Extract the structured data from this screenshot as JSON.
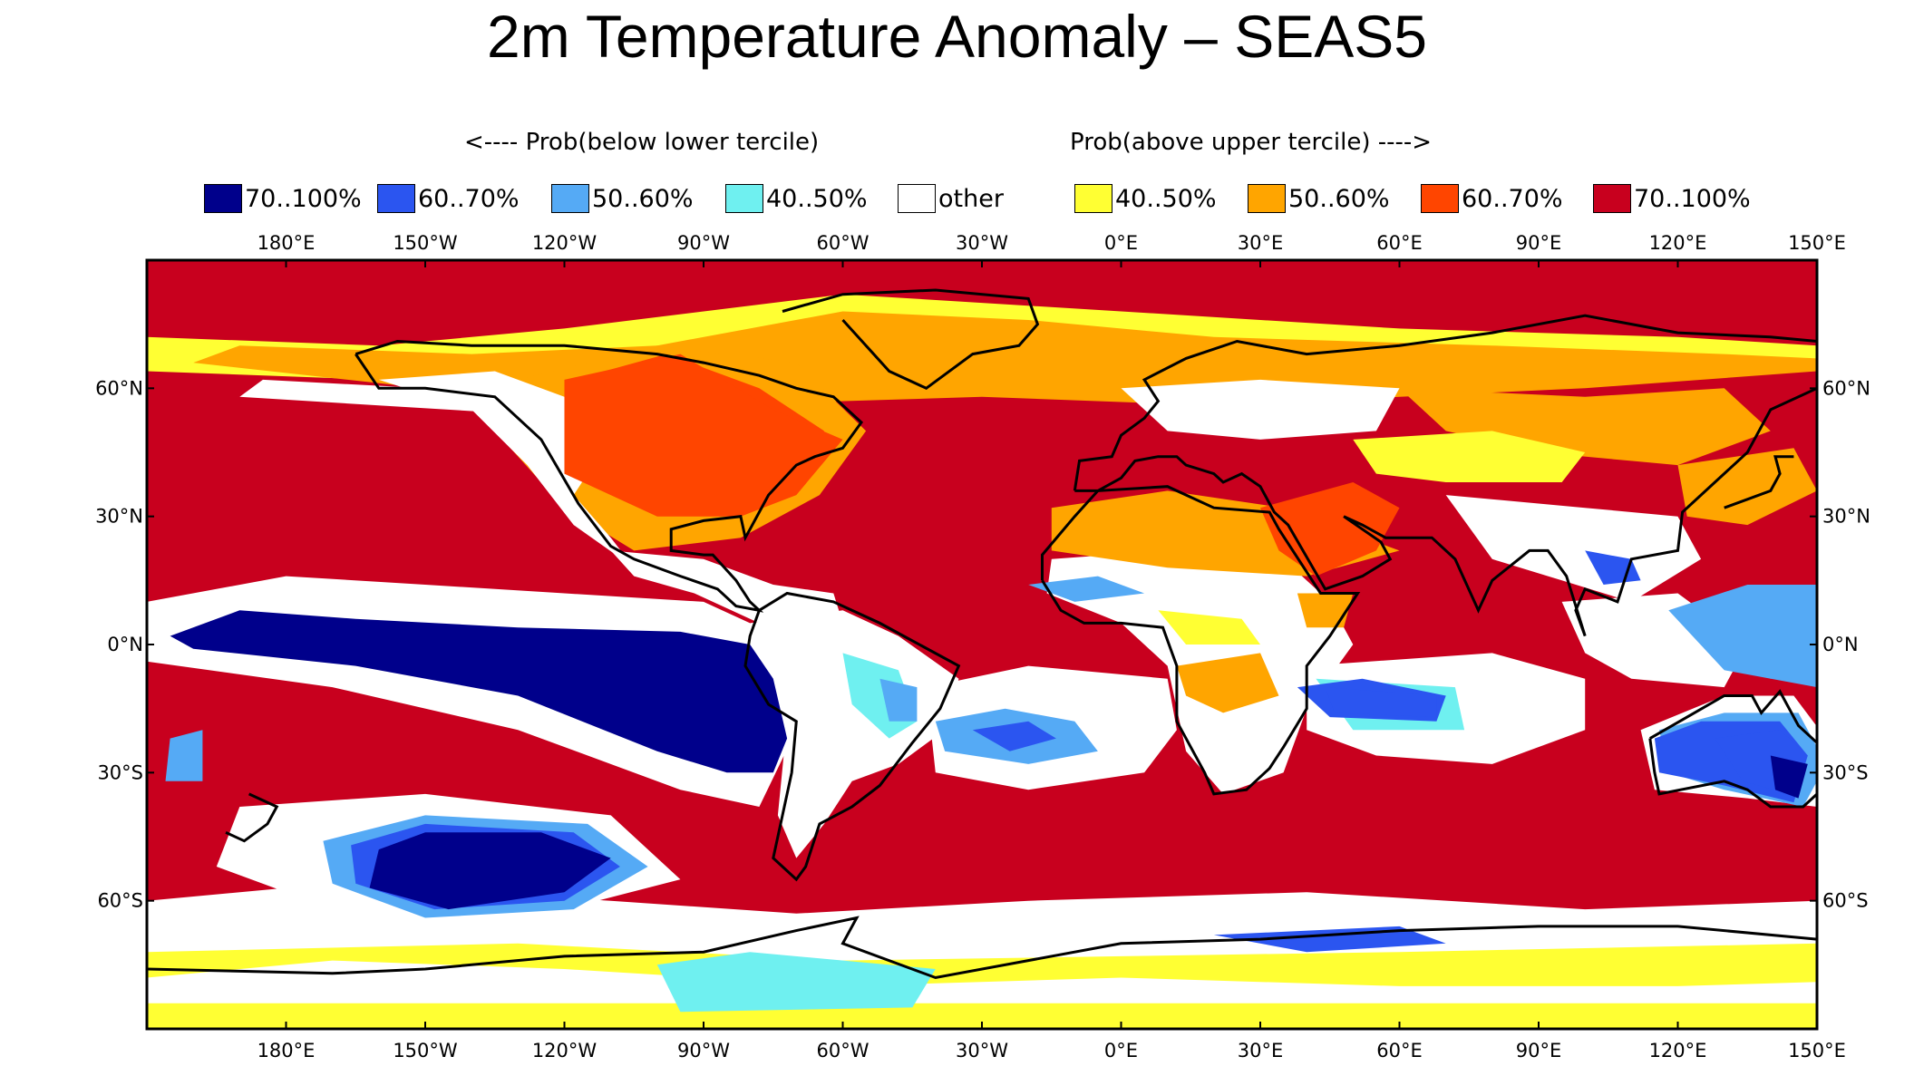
{
  "title": "2m Temperature Anomaly – SEAS5",
  "legend": {
    "below_header": "<---- Prob(below lower tercile)",
    "above_header": "Prob(above upper tercile) ---->",
    "items": [
      {
        "label": "70..100%",
        "color": "#00008b"
      },
      {
        "label": "60..70%",
        "color": "#2b55f0"
      },
      {
        "label": "50..60%",
        "color": "#55aaf5"
      },
      {
        "label": "40..50%",
        "color": "#6ff0f0"
      },
      {
        "label": "other",
        "color": "#ffffff"
      },
      {
        "label": "40..50%",
        "color": "#ffff33"
      },
      {
        "label": "50..60%",
        "color": "#ffa500"
      },
      {
        "label": "60..70%",
        "color": "#ff4500"
      },
      {
        "label": "70..100%",
        "color": "#c8001e"
      }
    ]
  },
  "map": {
    "projection": "equirectangular",
    "lon_range": [
      -210,
      150
    ],
    "lat_range": [
      -90,
      90
    ],
    "lon_ticks": [
      {
        "lon": -180,
        "label": "180°E"
      },
      {
        "lon": -150,
        "label": "150°W"
      },
      {
        "lon": -120,
        "label": "120°W"
      },
      {
        "lon": -90,
        "label": "90°W"
      },
      {
        "lon": -60,
        "label": "60°W"
      },
      {
        "lon": -30,
        "label": "30°W"
      },
      {
        "lon": 0,
        "label": "0°E"
      },
      {
        "lon": 30,
        "label": "30°E"
      },
      {
        "lon": 60,
        "label": "60°E"
      },
      {
        "lon": 90,
        "label": "90°E"
      },
      {
        "lon": 120,
        "label": "120°E"
      },
      {
        "lon": 150,
        "label": "150°E"
      }
    ],
    "lat_ticks": [
      {
        "lat": 60,
        "label": "60°N"
      },
      {
        "lat": 30,
        "label": "30°N"
      },
      {
        "lat": 0,
        "label": "0°N"
      },
      {
        "lat": -30,
        "label": "30°S"
      },
      {
        "lat": -60,
        "label": "60°S"
      }
    ],
    "regions": [
      {
        "name": "pacific-enso-cold-tongue",
        "color": "#00008b",
        "points": [
          [
            -205,
            2
          ],
          [
            -190,
            8
          ],
          [
            -165,
            6
          ],
          [
            -130,
            4
          ],
          [
            -95,
            3
          ],
          [
            -80,
            0
          ],
          [
            -75,
            -8
          ],
          [
            -72,
            -22
          ],
          [
            -75,
            -30
          ],
          [
            -85,
            -30
          ],
          [
            -100,
            -25
          ],
          [
            -130,
            -12
          ],
          [
            -165,
            -5
          ],
          [
            -200,
            -1
          ]
        ]
      },
      {
        "name": "south-pacific-cold",
        "color": "#00008b",
        "points": [
          [
            -160,
            -48
          ],
          [
            -150,
            -44
          ],
          [
            -125,
            -44
          ],
          [
            -110,
            -50
          ],
          [
            -120,
            -58
          ],
          [
            -145,
            -62
          ],
          [
            -162,
            -57
          ]
        ]
      },
      {
        "name": "australia-cold",
        "color": "#2b55f0",
        "points": [
          [
            115,
            -22
          ],
          [
            125,
            -18
          ],
          [
            142,
            -18
          ],
          [
            148,
            -26
          ],
          [
            145,
            -37
          ],
          [
            130,
            -33
          ],
          [
            116,
            -30
          ]
        ]
      },
      {
        "name": "indian-ocean-cold",
        "color": "#2b55f0",
        "points": [
          [
            38,
            -10
          ],
          [
            52,
            -8
          ],
          [
            70,
            -12
          ],
          [
            68,
            -18
          ],
          [
            45,
            -17
          ]
        ]
      },
      {
        "name": "antarctic-cyan",
        "color": "#6ff0f0",
        "points": [
          [
            -100,
            -75
          ],
          [
            -80,
            -72
          ],
          [
            -40,
            -76
          ],
          [
            -45,
            -85
          ],
          [
            -95,
            -86
          ]
        ]
      },
      {
        "name": "north-america-orange",
        "color": "#ff4500",
        "points": [
          [
            -120,
            62
          ],
          [
            -95,
            68
          ],
          0,
          [
            -75,
            55
          ],
          [
            -60,
            48
          ],
          [
            -70,
            35
          ],
          [
            -82,
            30
          ],
          [
            -100,
            30
          ],
          [
            -120,
            40
          ]
        ]
      }
    ]
  }
}
